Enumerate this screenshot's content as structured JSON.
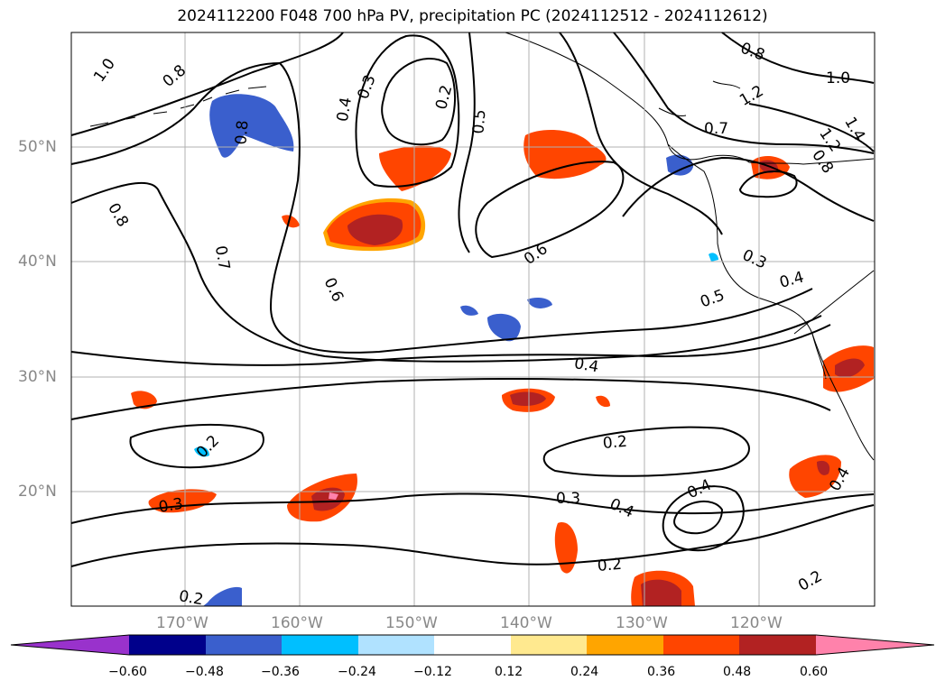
{
  "title": "2024112200 F048 700 hPa PV, precipitation PC (2024112512 - 2024112612)",
  "lon_labels": [
    "170°W",
    "160°W",
    "150°W",
    "140°W",
    "130°W",
    "120°W"
  ],
  "lat_labels": [
    "50°N",
    "40°N",
    "30°N",
    "20°N"
  ],
  "colorbar": {
    "ticks": [
      "−0.60",
      "−0.48",
      "−0.36",
      "−0.24",
      "−0.12",
      "0.12",
      "0.24",
      "0.36",
      "0.48",
      "0.60"
    ],
    "colors": [
      "#9932cc",
      "#00008b",
      "#3a5fcd",
      "#00bfff",
      "#b0e2ff",
      "#ffffff",
      "#ffe98f",
      "#ffa500",
      "#ff4500",
      "#b22222",
      "#ff82ab"
    ]
  },
  "contour_labels": [
    "1.0",
    "0.8",
    "0.3",
    "0.4",
    "0.2",
    "0.5",
    "0.8",
    "0.8",
    "1.0",
    "1.2",
    "1.4",
    "1.2",
    "0.7",
    "0.8",
    "0.8",
    "0.7",
    "0.6",
    "0.6",
    "0.3",
    "0.4",
    "0.5",
    "0.4",
    "0.2",
    "0.2",
    "0.3",
    "0.3",
    "0.4",
    "0.4",
    "0.2",
    "0.4",
    "0.2",
    "0.2"
  ]
}
